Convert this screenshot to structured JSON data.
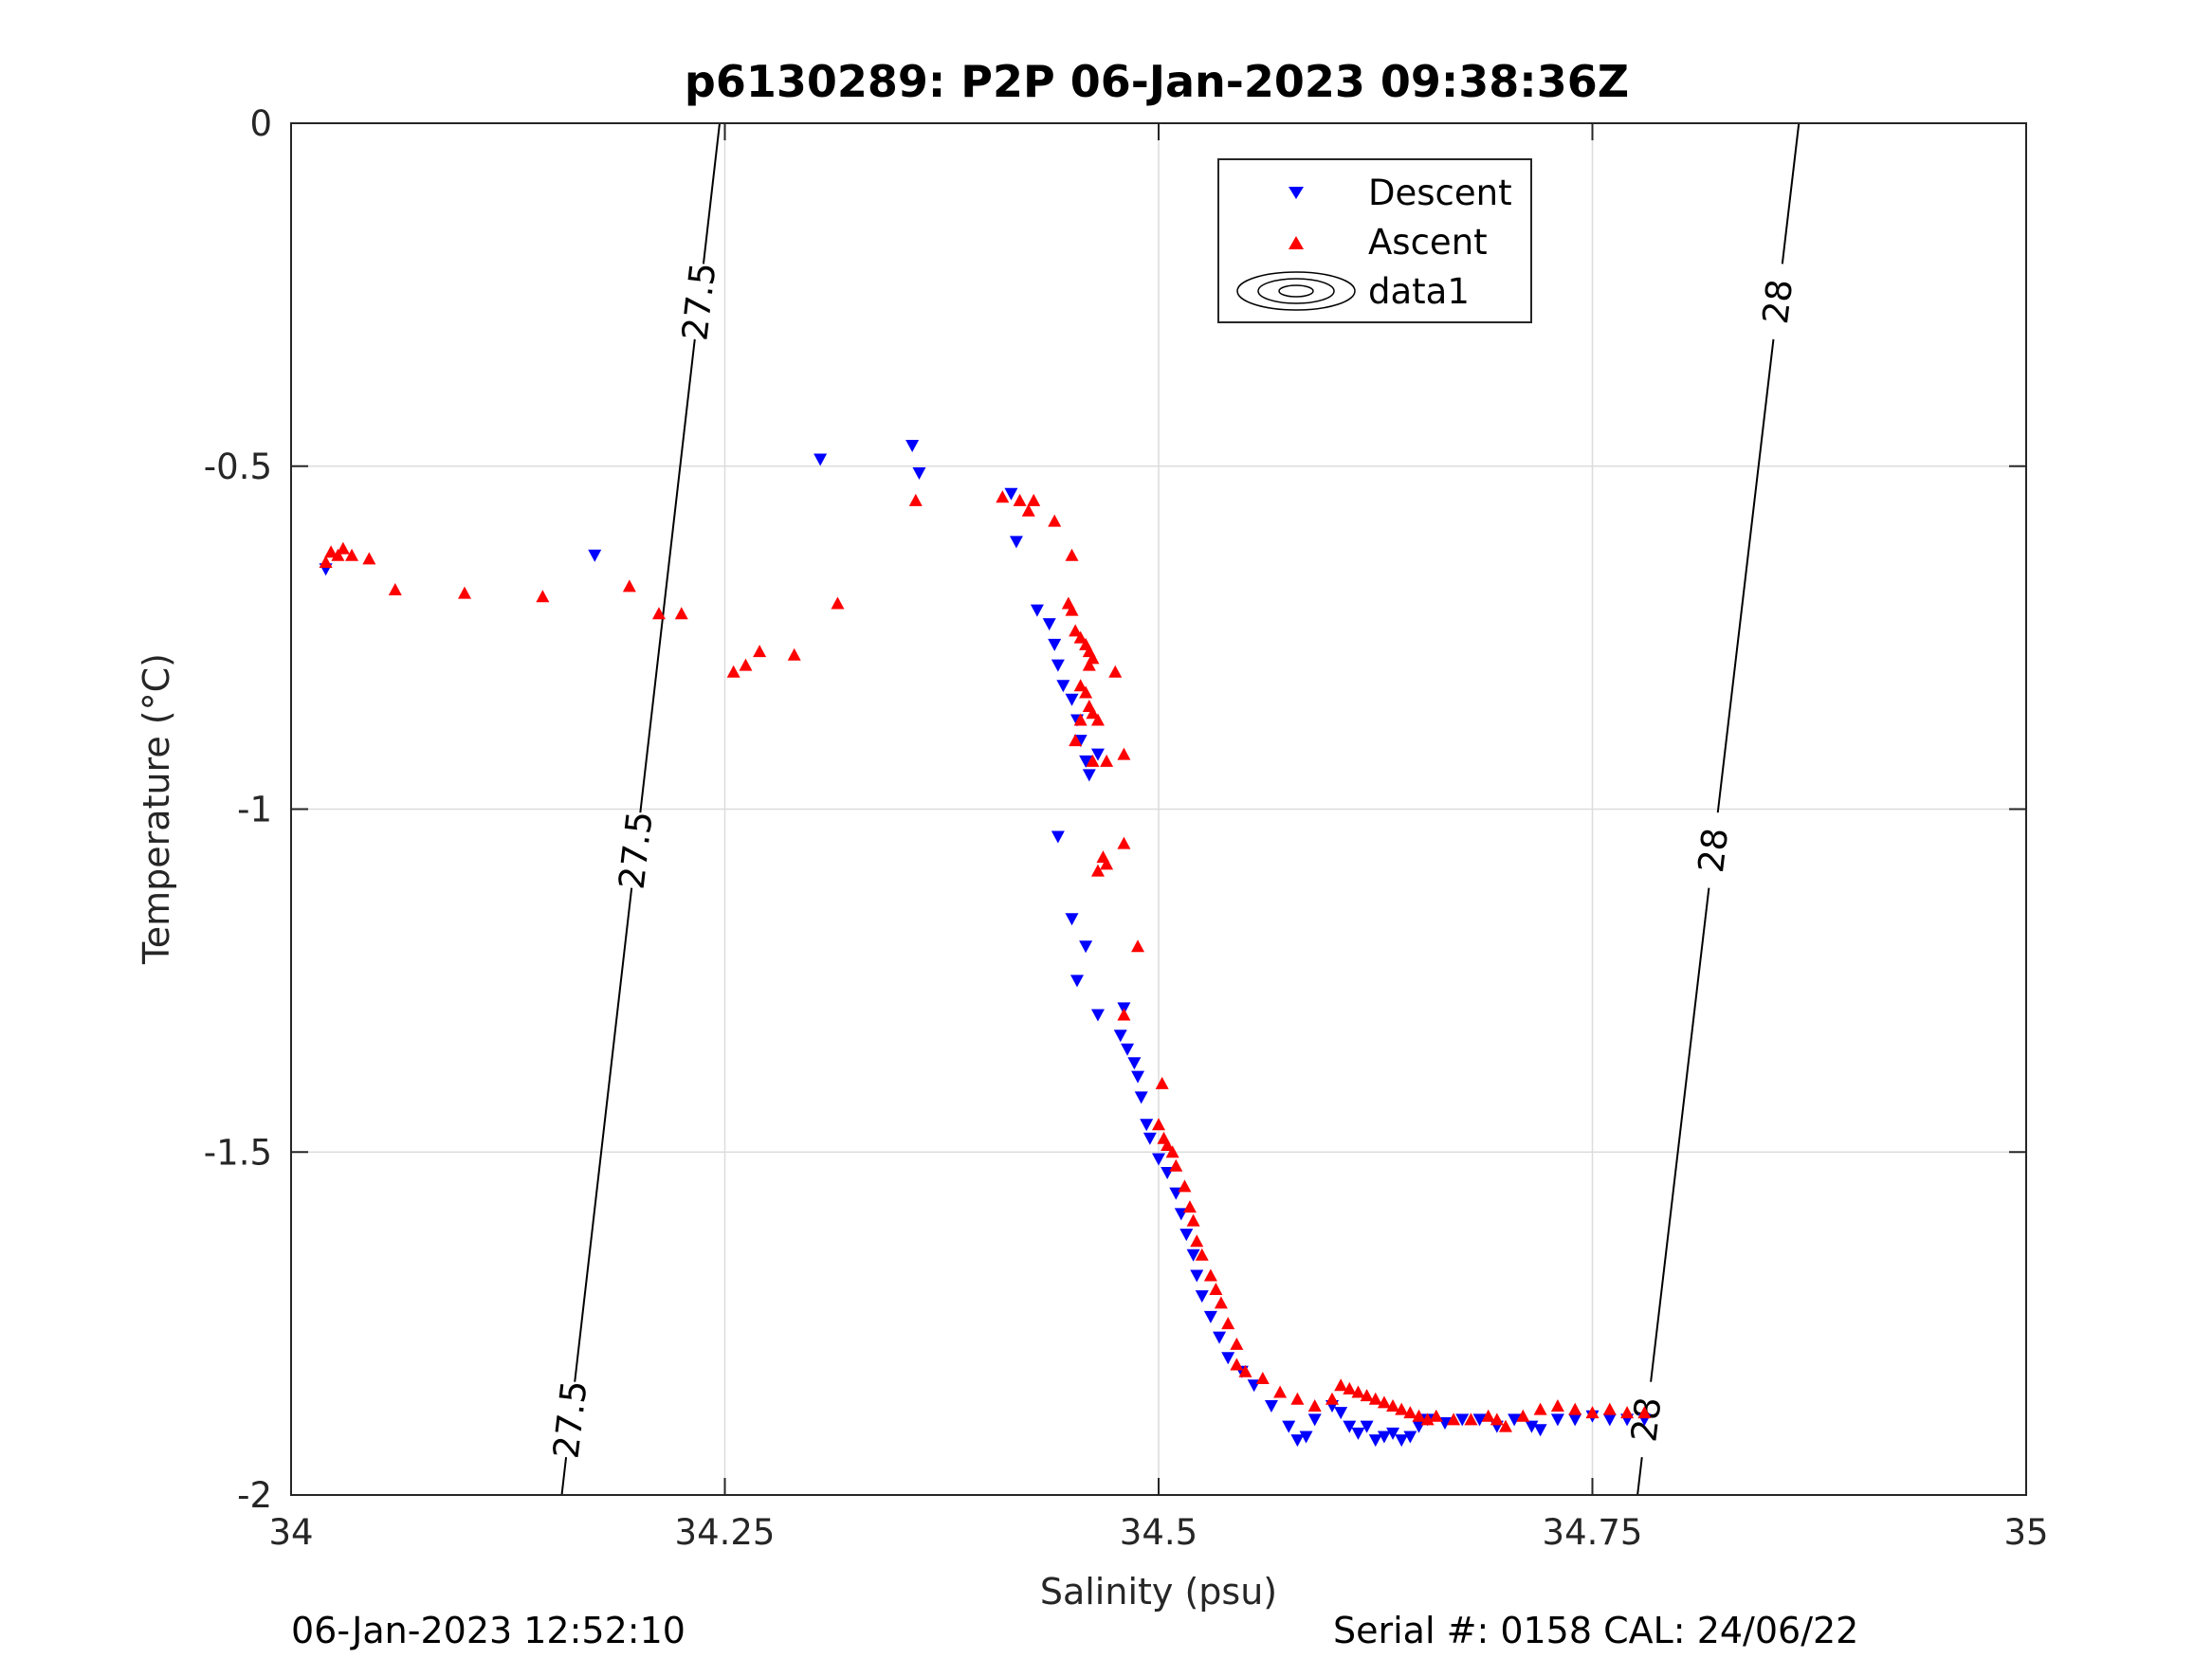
{
  "chart_data": {
    "type": "scatter",
    "title": "p6130289: P2P 06-Jan-2023 09:38:36Z",
    "xlabel": "Salinity (psu)",
    "ylabel": "Temperature (°C)",
    "xlim": [
      34,
      35
    ],
    "ylim": [
      -2,
      0
    ],
    "x_ticks": [
      "34",
      "34.25",
      "34.5",
      "34.75",
      "35"
    ],
    "y_ticks": [
      "0",
      "-0.5",
      "-1",
      "-1.5",
      "-2"
    ],
    "grid": true,
    "legend": {
      "position": "top-right",
      "entries": [
        "Descent",
        "Ascent",
        "data1"
      ]
    },
    "colors": {
      "Descent": "#0000ff",
      "Ascent": "#ff0000",
      "contour": "#000000"
    },
    "series": [
      {
        "name": "Descent",
        "marker": "triangle-down",
        "points": [
          [
            34.02,
            -0.65
          ],
          [
            34.175,
            -0.63
          ],
          [
            34.305,
            -0.49
          ],
          [
            34.358,
            -0.47
          ],
          [
            34.362,
            -0.51
          ],
          [
            34.415,
            -0.54
          ],
          [
            34.418,
            -0.61
          ],
          [
            34.43,
            -0.71
          ],
          [
            34.437,
            -0.73
          ],
          [
            34.44,
            -0.76
          ],
          [
            34.442,
            -0.79
          ],
          [
            34.445,
            -0.82
          ],
          [
            34.45,
            -0.84
          ],
          [
            34.453,
            -0.87
          ],
          [
            34.455,
            -0.9
          ],
          [
            34.458,
            -0.93
          ],
          [
            34.46,
            -0.95
          ],
          [
            34.465,
            -0.92
          ],
          [
            34.442,
            -1.04
          ],
          [
            34.45,
            -1.16
          ],
          [
            34.458,
            -1.2
          ],
          [
            34.453,
            -1.25
          ],
          [
            34.465,
            -1.3
          ],
          [
            34.48,
            -1.29
          ],
          [
            34.478,
            -1.33
          ],
          [
            34.482,
            -1.35
          ],
          [
            34.486,
            -1.37
          ],
          [
            34.488,
            -1.39
          ],
          [
            34.49,
            -1.42
          ],
          [
            34.493,
            -1.46
          ],
          [
            34.495,
            -1.48
          ],
          [
            34.5,
            -1.51
          ],
          [
            34.505,
            -1.53
          ],
          [
            34.51,
            -1.56
          ],
          [
            34.513,
            -1.59
          ],
          [
            34.516,
            -1.62
          ],
          [
            34.52,
            -1.65
          ],
          [
            34.522,
            -1.68
          ],
          [
            34.525,
            -1.71
          ],
          [
            34.53,
            -1.74
          ],
          [
            34.535,
            -1.77
          ],
          [
            34.54,
            -1.8
          ],
          [
            34.548,
            -1.82
          ],
          [
            34.555,
            -1.84
          ],
          [
            34.565,
            -1.87
          ],
          [
            34.575,
            -1.9
          ],
          [
            34.58,
            -1.92
          ],
          [
            34.585,
            -1.915
          ],
          [
            34.59,
            -1.89
          ],
          [
            34.6,
            -1.87
          ],
          [
            34.605,
            -1.88
          ],
          [
            34.61,
            -1.9
          ],
          [
            34.615,
            -1.91
          ],
          [
            34.62,
            -1.9
          ],
          [
            34.625,
            -1.92
          ],
          [
            34.63,
            -1.915
          ],
          [
            34.635,
            -1.91
          ],
          [
            34.64,
            -1.92
          ],
          [
            34.645,
            -1.915
          ],
          [
            34.65,
            -1.9
          ],
          [
            34.655,
            -1.89
          ],
          [
            34.665,
            -1.895
          ],
          [
            34.675,
            -1.89
          ],
          [
            34.685,
            -1.89
          ],
          [
            34.695,
            -1.9
          ],
          [
            34.705,
            -1.89
          ],
          [
            34.715,
            -1.9
          ],
          [
            34.72,
            -1.905
          ],
          [
            34.73,
            -1.89
          ],
          [
            34.74,
            -1.89
          ],
          [
            34.75,
            -1.885
          ],
          [
            34.76,
            -1.89
          ],
          [
            34.77,
            -1.89
          ],
          [
            34.78,
            -1.89
          ]
        ]
      },
      {
        "name": "Ascent",
        "marker": "triangle-up",
        "points": [
          [
            34.02,
            -0.64
          ],
          [
            34.023,
            -0.625
          ],
          [
            34.027,
            -0.63
          ],
          [
            34.03,
            -0.62
          ],
          [
            34.035,
            -0.63
          ],
          [
            34.045,
            -0.635
          ],
          [
            34.06,
            -0.68
          ],
          [
            34.1,
            -0.685
          ],
          [
            34.145,
            -0.69
          ],
          [
            34.195,
            -0.675
          ],
          [
            34.212,
            -0.715
          ],
          [
            34.225,
            -0.715
          ],
          [
            34.255,
            -0.8
          ],
          [
            34.262,
            -0.79
          ],
          [
            34.27,
            -0.77
          ],
          [
            34.29,
            -0.775
          ],
          [
            34.315,
            -0.7
          ],
          [
            34.36,
            -0.55
          ],
          [
            34.41,
            -0.545
          ],
          [
            34.42,
            -0.55
          ],
          [
            34.425,
            -0.565
          ],
          [
            34.44,
            -0.58
          ],
          [
            34.428,
            -0.55
          ],
          [
            34.45,
            -0.63
          ],
          [
            34.448,
            -0.7
          ],
          [
            34.45,
            -0.71
          ],
          [
            34.452,
            -0.74
          ],
          [
            34.455,
            -0.75
          ],
          [
            34.458,
            -0.76
          ],
          [
            34.46,
            -0.77
          ],
          [
            34.462,
            -0.78
          ],
          [
            34.46,
            -0.79
          ],
          [
            34.455,
            -0.82
          ],
          [
            34.458,
            -0.83
          ],
          [
            34.46,
            -0.85
          ],
          [
            34.462,
            -0.86
          ],
          [
            34.465,
            -0.87
          ],
          [
            34.455,
            -0.87
          ],
          [
            34.452,
            -0.9
          ],
          [
            34.47,
            -0.93
          ],
          [
            34.462,
            -0.93
          ],
          [
            34.475,
            -0.8
          ],
          [
            34.48,
            -0.92
          ],
          [
            34.48,
            -1.05
          ],
          [
            34.468,
            -1.07
          ],
          [
            34.47,
            -1.08
          ],
          [
            34.465,
            -1.09
          ],
          [
            34.488,
            -1.2
          ],
          [
            34.48,
            -1.3
          ],
          [
            34.502,
            -1.4
          ],
          [
            34.5,
            -1.46
          ],
          [
            34.503,
            -1.48
          ],
          [
            34.505,
            -1.49
          ],
          [
            34.508,
            -1.5
          ],
          [
            34.51,
            -1.52
          ],
          [
            34.515,
            -1.55
          ],
          [
            34.518,
            -1.58
          ],
          [
            34.52,
            -1.6
          ],
          [
            34.522,
            -1.63
          ],
          [
            34.525,
            -1.65
          ],
          [
            34.53,
            -1.68
          ],
          [
            34.533,
            -1.7
          ],
          [
            34.536,
            -1.72
          ],
          [
            34.54,
            -1.75
          ],
          [
            34.545,
            -1.78
          ],
          [
            34.545,
            -1.81
          ],
          [
            34.55,
            -1.82
          ],
          [
            34.56,
            -1.83
          ],
          [
            34.57,
            -1.85
          ],
          [
            34.58,
            -1.86
          ],
          [
            34.59,
            -1.87
          ],
          [
            34.6,
            -1.86
          ],
          [
            34.605,
            -1.84
          ],
          [
            34.61,
            -1.845
          ],
          [
            34.615,
            -1.85
          ],
          [
            34.62,
            -1.855
          ],
          [
            34.625,
            -1.86
          ],
          [
            34.63,
            -1.865
          ],
          [
            34.635,
            -1.87
          ],
          [
            34.64,
            -1.875
          ],
          [
            34.645,
            -1.88
          ],
          [
            34.65,
            -1.885
          ],
          [
            34.655,
            -1.89
          ],
          [
            34.66,
            -1.885
          ],
          [
            34.67,
            -1.89
          ],
          [
            34.68,
            -1.89
          ],
          [
            34.69,
            -1.885
          ],
          [
            34.695,
            -1.89
          ],
          [
            34.7,
            -1.9
          ],
          [
            34.71,
            -1.885
          ],
          [
            34.72,
            -1.875
          ],
          [
            34.73,
            -1.87
          ],
          [
            34.74,
            -1.875
          ],
          [
            34.75,
            -1.88
          ],
          [
            34.76,
            -1.875
          ],
          [
            34.77,
            -1.88
          ],
          [
            34.78,
            -1.88
          ]
        ]
      },
      {
        "name": "data1",
        "type": "contour",
        "levels": [
          {
            "label": "27.5",
            "line": [
              [
                34.247,
                0
              ],
              [
                34.156,
                -2
              ]
            ]
          },
          {
            "label": "28",
            "line": [
              [
                34.869,
                0
              ],
              [
                34.776,
                -2
              ]
            ]
          }
        ]
      }
    ]
  },
  "footer": {
    "left": "06-Jan-2023 12:52:10",
    "right": "Serial #: 0158  CAL: 24/06/22"
  }
}
